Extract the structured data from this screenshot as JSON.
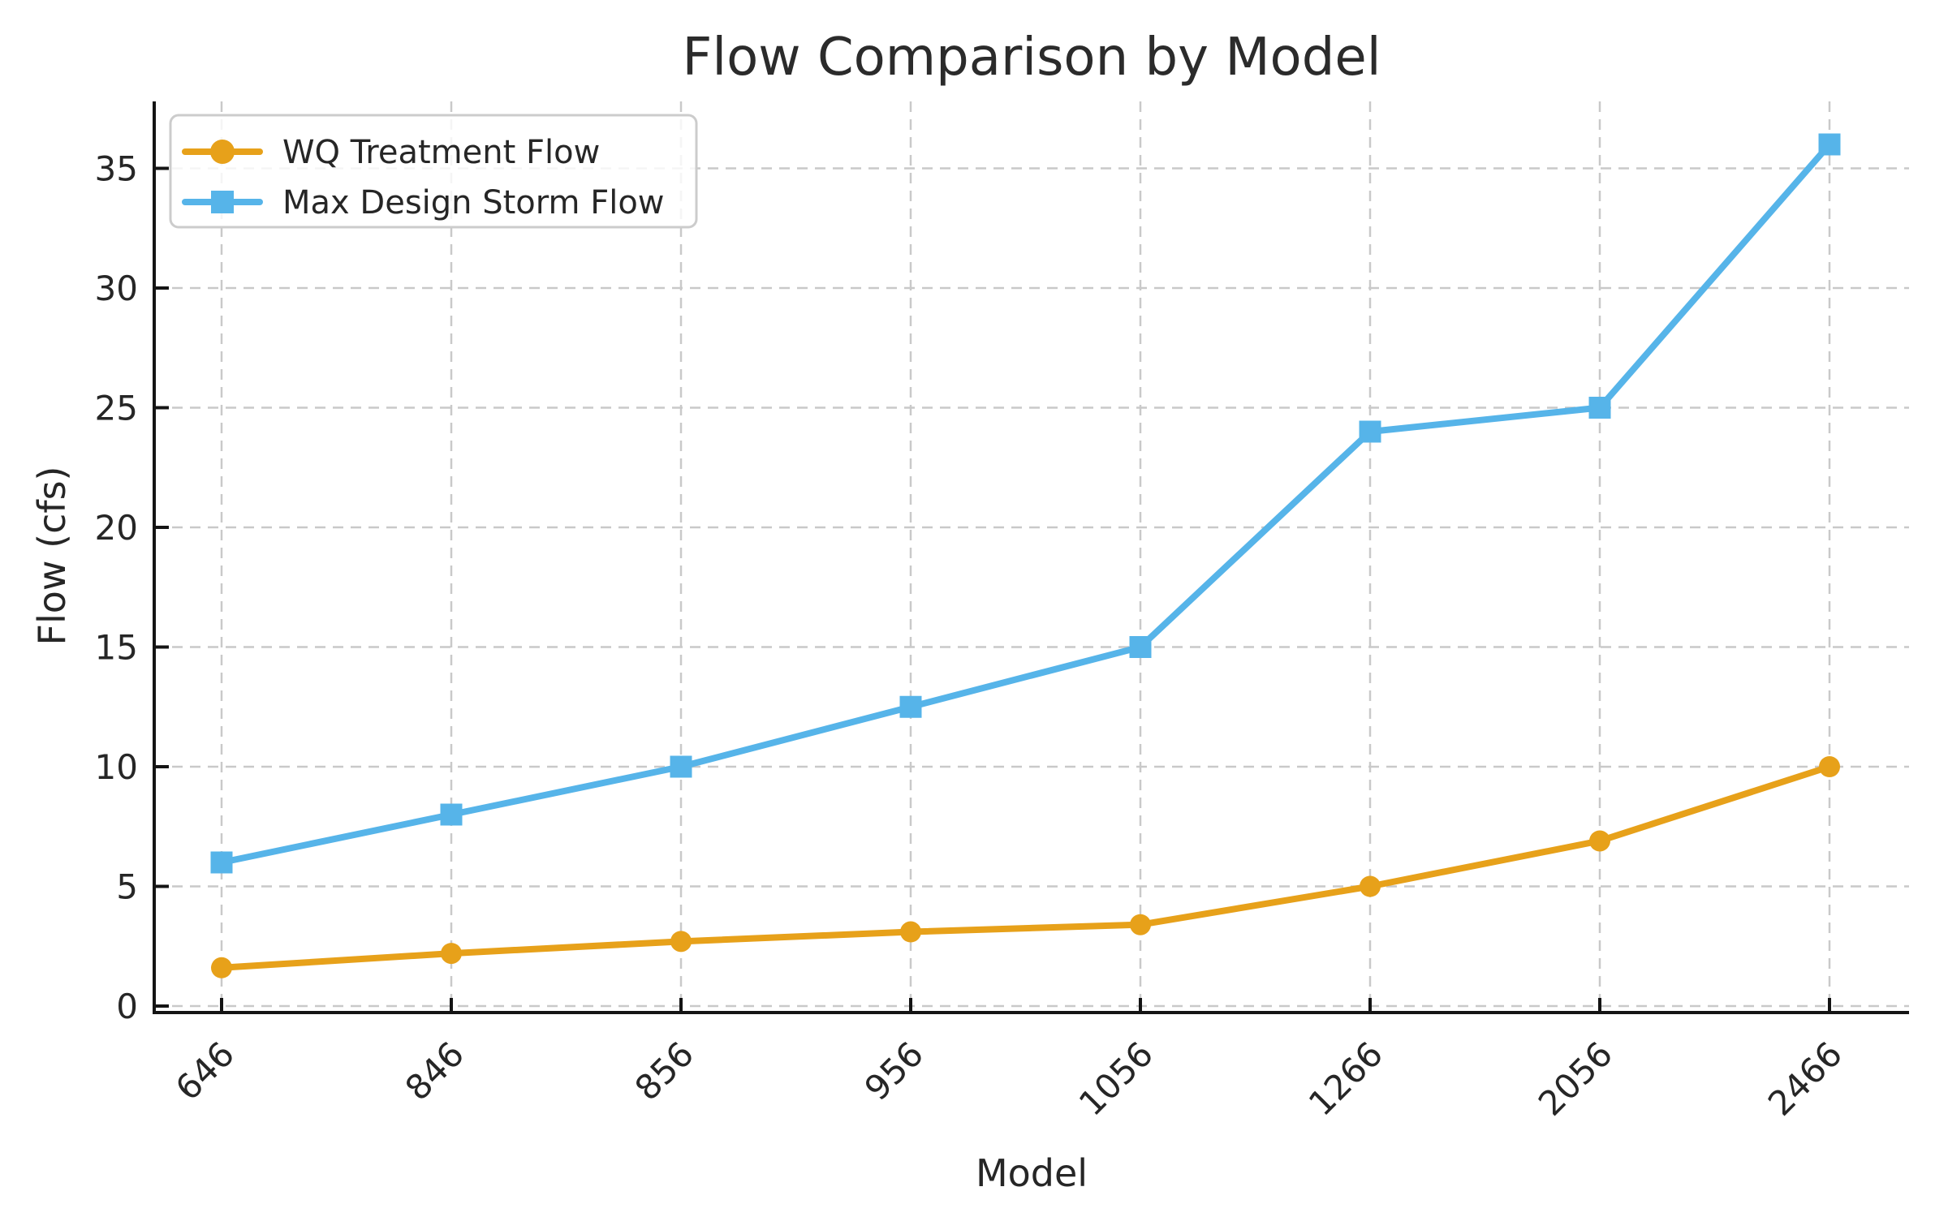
{
  "figure": {
    "background": "#ffffff"
  },
  "chart_data": {
    "type": "line",
    "title": "Flow Comparison by Model",
    "xlabel": "Model",
    "ylabel": "Flow (cfs)",
    "categories": [
      "646",
      "846",
      "856",
      "956",
      "1056",
      "1266",
      "2056",
      "2466"
    ],
    "series": [
      {
        "name": "WQ Treatment Flow",
        "color": "#E7A11A",
        "marker": "circle",
        "values": [
          1.6,
          2.2,
          2.7,
          3.1,
          3.4,
          5.0,
          6.9,
          10.0
        ]
      },
      {
        "name": "Max Design Storm Flow",
        "color": "#56B4E9",
        "marker": "square",
        "values": [
          6.0,
          8.0,
          10.0,
          12.5,
          15.0,
          24.0,
          25.0,
          36.0
        ]
      }
    ],
    "yticks": [
      "0",
      "5",
      "10",
      "15",
      "20",
      "25",
      "30",
      "35"
    ],
    "ytick_values": [
      0,
      5,
      10,
      15,
      20,
      25,
      30,
      35
    ],
    "ylim": [
      -0.3,
      37.8
    ],
    "grid": {
      "visible": true,
      "style": "dashed",
      "color": "#c9c9c9"
    },
    "legend": {
      "position": "upper-left"
    },
    "styles": {
      "text_color": "#262626",
      "spine_color": "#141414",
      "tick_color": "#141414",
      "legend_border": "#cccccc",
      "legend_fill": "#ffffff"
    },
    "x_tick_rotation_deg": 45
  }
}
